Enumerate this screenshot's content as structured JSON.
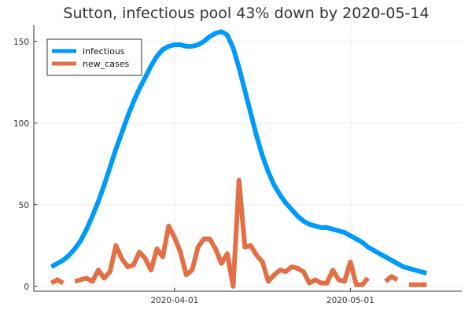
{
  "chart_data": {
    "type": "line",
    "title": "Sutton, infectious pool 43% down by 2020-05-14",
    "xlabel": "",
    "ylabel": "",
    "x_start": "2020-03-11",
    "x_step_days": 1,
    "xlim": [
      "2020-03-08",
      "2020-05-20"
    ],
    "ylim": [
      -3,
      160
    ],
    "x_ticks": [
      {
        "date": "2020-04-01",
        "label": "2020-04-01"
      },
      {
        "date": "2020-05-01",
        "label": "2020-05-01"
      }
    ],
    "y_ticks": [
      {
        "value": 0,
        "label": "0"
      },
      {
        "value": 50,
        "label": "50"
      },
      {
        "value": 100,
        "label": "100"
      },
      {
        "value": 150,
        "label": "150"
      }
    ],
    "grid": true,
    "legend": "top-left",
    "series": [
      {
        "name": "infectious",
        "color": "#009af9",
        "values": [
          12,
          14,
          16,
          19,
          23,
          28,
          35,
          43,
          52,
          62,
          73,
          84,
          94,
          104,
          113,
          121,
          128,
          135,
          141,
          145,
          147,
          148,
          148,
          147,
          147,
          148,
          150,
          153,
          155,
          156,
          154,
          146,
          134,
          120,
          106,
          92,
          80,
          70,
          62,
          56,
          51,
          47,
          43,
          40,
          38,
          37,
          36,
          36,
          35,
          34,
          33,
          31,
          29,
          27,
          24,
          22,
          20,
          18,
          16,
          14,
          12,
          11,
          10,
          9,
          8
        ]
      },
      {
        "name": "new_cases",
        "color": "#e26f46",
        "values": [
          2,
          4,
          2,
          null,
          3,
          4,
          5,
          3,
          10,
          5,
          9,
          25,
          17,
          12,
          13,
          21,
          17,
          10,
          23,
          18,
          37,
          30,
          21,
          7,
          10,
          24,
          29,
          29,
          23,
          14,
          20,
          0,
          65,
          24,
          25,
          19,
          15,
          3,
          7,
          10,
          9,
          12,
          11,
          9,
          2,
          4,
          2,
          2,
          10,
          4,
          3,
          15,
          1,
          1,
          5,
          null,
          null,
          3,
          6,
          4,
          null,
          1,
          1,
          1,
          1
        ]
      }
    ]
  }
}
